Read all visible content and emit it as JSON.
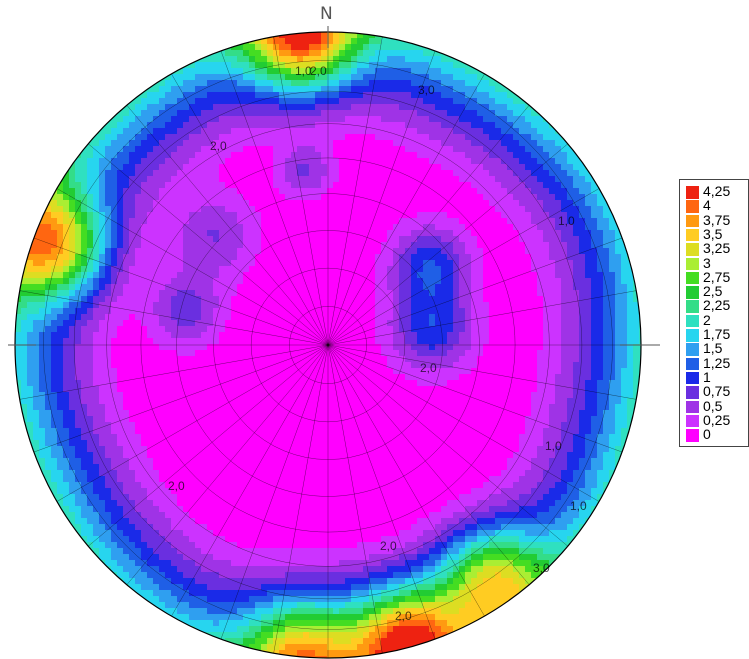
{
  "chart_data": {
    "type": "heatmap",
    "subtype": "stereonet-density-contour",
    "projection": "equal-area lower hemisphere",
    "north_label": "N",
    "grid": true,
    "legend_placement": "right",
    "contour_levels": [
      "0",
      "0,25",
      "0,5",
      "0,75",
      "1",
      "1,25",
      "1,5",
      "1,75",
      "2",
      "2,25",
      "2,5",
      "2,75",
      "3",
      "3,25",
      "3,5",
      "3,75",
      "4",
      "4,25"
    ],
    "level_values": [
      0,
      0.25,
      0.5,
      0.75,
      1,
      1.25,
      1.5,
      1.75,
      2,
      2.25,
      2.5,
      2.75,
      3,
      3.25,
      3.5,
      3.75,
      4,
      4.25
    ],
    "level_colors": [
      "#ff00ff",
      "#cc33ff",
      "#9f33e6",
      "#6a2fe0",
      "#1a2ae8",
      "#1f5fe6",
      "#2f9ff0",
      "#27d5ef",
      "#2fe0c0",
      "#33dd88",
      "#22cc33",
      "#44dd22",
      "#aaee33",
      "#dddd22",
      "#ffcc22",
      "#ff9a11",
      "#ff6611",
      "#ee2211"
    ],
    "grid_labels": [
      "1,0",
      "2,0",
      "3,0"
    ],
    "density_peaks": [
      {
        "azimuth_deg": 290,
        "plunge_deg": 8,
        "value": 4.0
      },
      {
        "azimuth_deg": 145,
        "plunge_deg": 10,
        "value": 3.6
      },
      {
        "azimuth_deg": 355,
        "plunge_deg": 2,
        "value": 4.2
      },
      {
        "azimuth_deg": 185,
        "plunge_deg": 3,
        "value": 3.4
      },
      {
        "azimuth_deg": 165,
        "plunge_deg": 3,
        "value": 4.1
      }
    ]
  }
}
